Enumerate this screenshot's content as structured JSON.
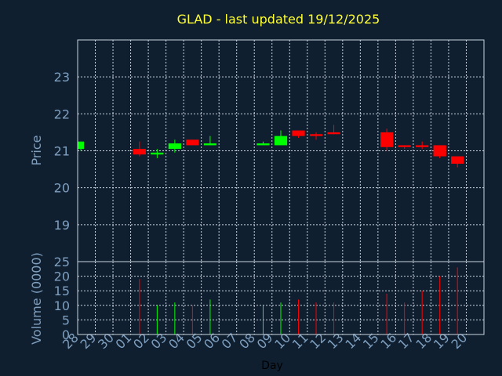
{
  "chart_data": {
    "type": "candlestick",
    "title": "GLAD - last updated 19/12/2025",
    "ylabel_price": "Price",
    "ylabel_volume": "Volume (0000)",
    "xlabel": "Day",
    "price_ylim": [
      18.0,
      24.0
    ],
    "price_yticks": [
      "19",
      "20",
      "21",
      "22",
      "23"
    ],
    "volume_ylim": [
      0,
      25
    ],
    "volume_yticks": [
      "0",
      "5",
      "10",
      "15",
      "20",
      "25"
    ],
    "grid": true,
    "x_labels": [
      "28",
      "29",
      "30",
      "01",
      "02",
      "03",
      "04",
      "05",
      "06",
      "07",
      "08",
      "09",
      "10",
      "11",
      "12",
      "13",
      "14",
      "15",
      "16",
      "17",
      "18",
      "19",
      "20"
    ],
    "candles": [
      {
        "day": "28",
        "open": 21.05,
        "high": 21.25,
        "low": 21.0,
        "close": 21.25,
        "volume": 0
      },
      {
        "day": "01",
        "open": 21.05,
        "high": 21.25,
        "low": 20.85,
        "close": 20.9,
        "volume": 19
      },
      {
        "day": "02",
        "open": 20.9,
        "high": 21.05,
        "low": 20.8,
        "close": 20.95,
        "volume": 10
      },
      {
        "day": "03",
        "open": 21.05,
        "high": 21.3,
        "low": 20.95,
        "close": 21.2,
        "volume": 11
      },
      {
        "day": "04",
        "open": 21.3,
        "high": 21.3,
        "low": 21.15,
        "close": 21.15,
        "volume": 10
      },
      {
        "day": "05",
        "open": 21.15,
        "high": 21.4,
        "low": 21.15,
        "close": 21.2,
        "volume": 12
      },
      {
        "day": "08",
        "open": 21.15,
        "high": 21.25,
        "low": 21.15,
        "close": 21.2,
        "volume": 10
      },
      {
        "day": "09",
        "open": 21.15,
        "high": 21.55,
        "low": 21.15,
        "close": 21.4,
        "volume": 11
      },
      {
        "day": "10",
        "open": 21.55,
        "high": 21.55,
        "low": 21.35,
        "close": 21.4,
        "volume": 12
      },
      {
        "day": "11",
        "open": 21.45,
        "high": 21.5,
        "low": 21.3,
        "close": 21.4,
        "volume": 11
      },
      {
        "day": "12",
        "open": 21.5,
        "high": 21.7,
        "low": 21.45,
        "close": 21.45,
        "volume": 11
      },
      {
        "day": "15",
        "open": 21.5,
        "high": 21.6,
        "low": 21.0,
        "close": 21.1,
        "volume": 14
      },
      {
        "day": "16",
        "open": 21.15,
        "high": 21.15,
        "low": 21.05,
        "close": 21.1,
        "volume": 11
      },
      {
        "day": "17",
        "open": 21.15,
        "high": 21.25,
        "low": 21.05,
        "close": 21.1,
        "volume": 15
      },
      {
        "day": "18",
        "open": 21.15,
        "high": 21.15,
        "low": 20.8,
        "close": 20.85,
        "volume": 20
      },
      {
        "day": "19",
        "open": 20.85,
        "high": 20.85,
        "low": 20.55,
        "close": 20.65,
        "volume": 23
      }
    ],
    "colors": {
      "up": "#00ff00",
      "down": "#ff0000",
      "background": "#0f1f30",
      "grid": "#c8d3de",
      "title": "#ffff33",
      "tick": "#7f9fbf",
      "xlabel": "#000000"
    }
  }
}
